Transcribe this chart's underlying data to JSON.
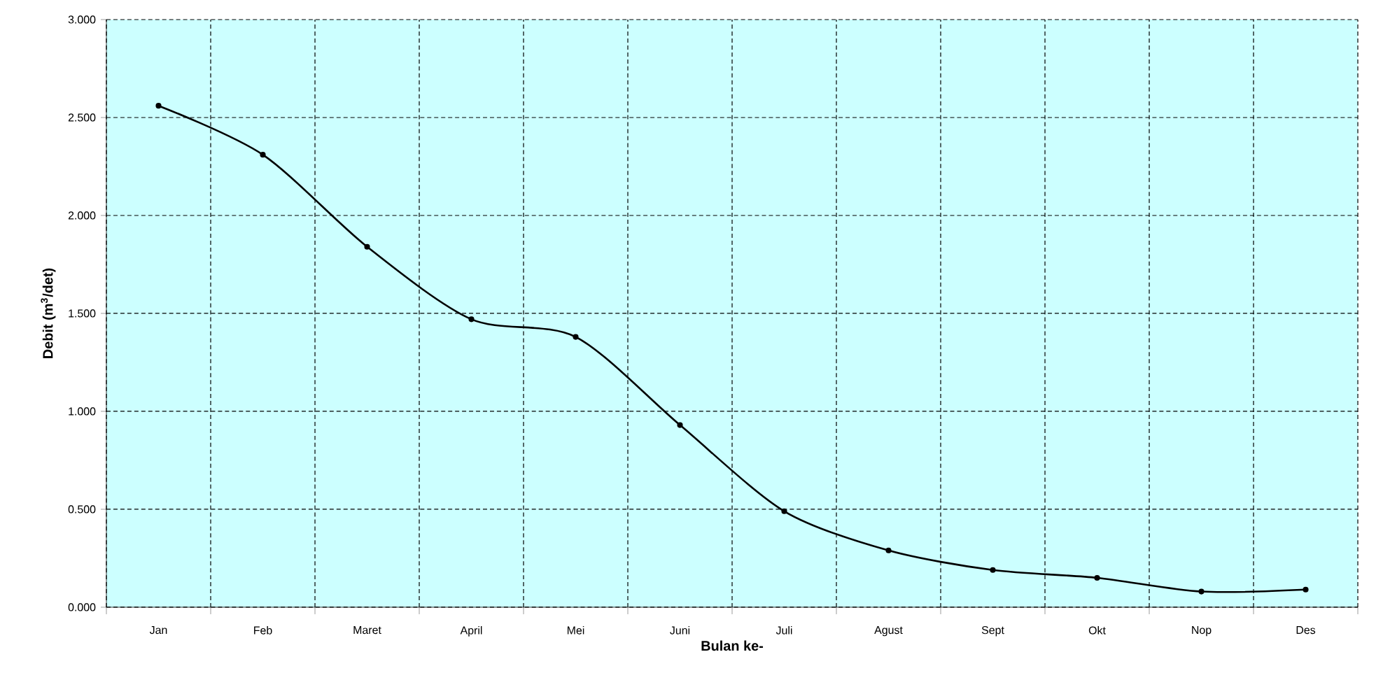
{
  "chart_data": {
    "type": "line",
    "xlabel": "Bulan ke-",
    "ylabel": "Debit (m$^{3}$/det)",
    "categories": [
      "Jan",
      "Feb",
      "Maret",
      "April",
      "Mei",
      "Juni",
      "Juli",
      "Agust",
      "Sept",
      "Okt",
      "Nop",
      "Des"
    ],
    "series": [
      {
        "color": "#000000",
        "values": [
          2.56,
          2.31,
          1.84,
          1.47,
          1.38,
          0.93,
          0.49,
          0.29,
          0.19,
          0.15,
          0.08,
          0.09
        ]
      }
    ],
    "ylim": [
      0,
      3
    ],
    "yticks": [
      {
        "value": 0,
        "label": "0.000"
      },
      {
        "value": 0.5,
        "label": "0.500"
      },
      {
        "value": 1,
        "label": "1.000"
      },
      {
        "value": 1.5,
        "label": "1.500"
      },
      {
        "value": 2,
        "label": "2.000"
      },
      {
        "value": 2.5,
        "label": "2.500"
      },
      {
        "value": 3,
        "label": "3.000"
      }
    ],
    "grid": true,
    "marker": "circle",
    "line_style": "solid",
    "legend": false
  }
}
